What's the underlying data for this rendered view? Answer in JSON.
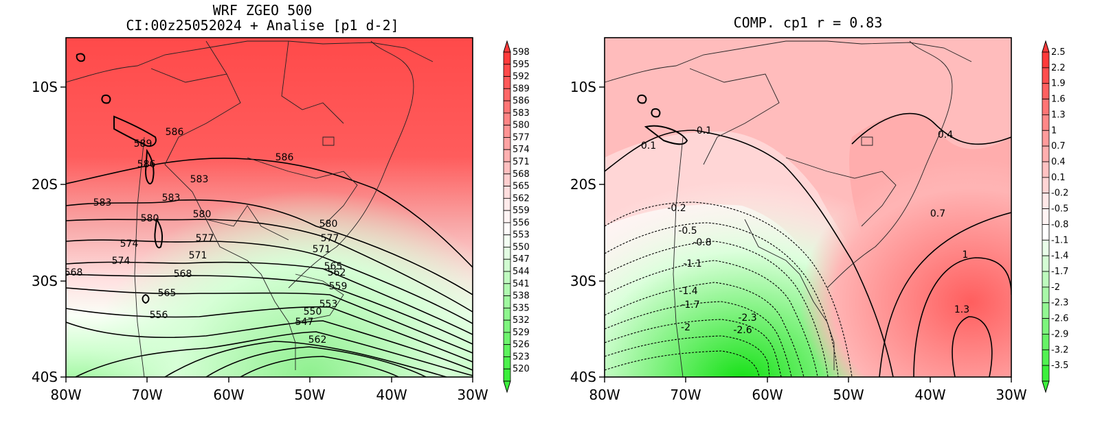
{
  "left_panel": {
    "title_line1": "WRF ZGEO 500",
    "title_line2": "CI:00z25052024 + Analise  [p1 d-2]",
    "lat_ticks": [
      "10S",
      "20S",
      "30S",
      "40S"
    ],
    "lon_ticks": [
      "80W",
      "70W",
      "60W",
      "50W",
      "40W",
      "30W"
    ],
    "colorbar_labels": [
      "598",
      "595",
      "592",
      "589",
      "586",
      "583",
      "580",
      "577",
      "574",
      "571",
      "568",
      "565",
      "562",
      "559",
      "556",
      "553",
      "550",
      "547",
      "544",
      "541",
      "538",
      "535",
      "532",
      "529",
      "526",
      "523",
      "520"
    ],
    "contour_labels": [
      "589",
      "586",
      "586",
      "586",
      "583",
      "583",
      "583",
      "580",
      "580",
      "580",
      "577",
      "577",
      "574",
      "574",
      "571",
      "571",
      "568",
      "565",
      "568",
      "565",
      "562",
      "559",
      "556",
      "553",
      "550",
      "547",
      "562"
    ]
  },
  "right_panel": {
    "title": "COMP. cp1  r =  0.83",
    "lat_ticks": [
      "10S",
      "20S",
      "30S",
      "40S"
    ],
    "lon_ticks": [
      "80W",
      "70W",
      "60W",
      "50W",
      "40W",
      "30W"
    ],
    "colorbar_labels": [
      "2.5",
      "2.2",
      "1.9",
      "1.6",
      "1.3",
      "1",
      "0.7",
      "0.4",
      "0.1",
      "-0.2",
      "-0.5",
      "-0.8",
      "-1.1",
      "-1.4",
      "-1.7",
      "-2",
      "-2.3",
      "-2.6",
      "-2.9",
      "-3.2",
      "-3.5"
    ],
    "contour_labels": [
      "0.1",
      "0.1",
      "0.4",
      "0.7",
      "1",
      "1.3",
      "-0.2",
      "-0.5",
      "-0.8",
      "-1.1",
      "-1.4",
      "-1.7",
      "-2",
      "-2.3",
      "-2.6"
    ]
  },
  "colors": {
    "high": "#ff3b3b",
    "mid": "#ffe8e8",
    "neutral": "#ffffff",
    "low": "#3cf03c",
    "border": "#000000"
  }
}
